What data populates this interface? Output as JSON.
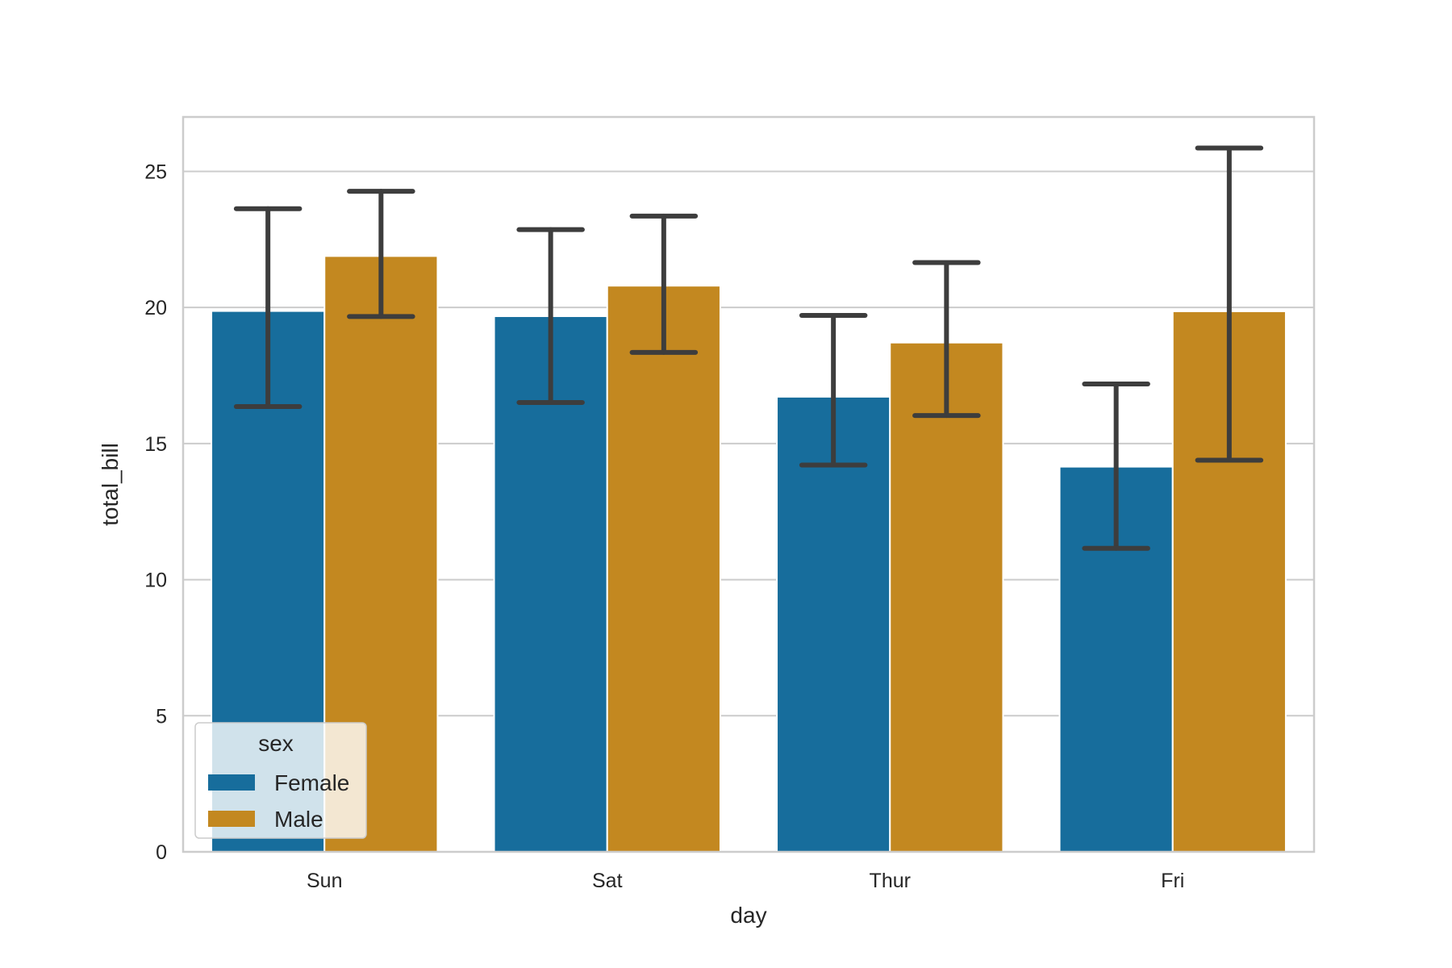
{
  "chart_data": {
    "type": "bar",
    "title": "",
    "xlabel": "day",
    "ylabel": "total_bill",
    "categories": [
      "Sun",
      "Sat",
      "Thur",
      "Fri"
    ],
    "ylim": [
      0,
      27
    ],
    "yticks": [
      "0",
      "5",
      "10",
      "15",
      "20",
      "25"
    ],
    "grid": true,
    "series": [
      {
        "name": "Female",
        "color": "#176d9c",
        "values": [
          19.87,
          19.68,
          16.72,
          14.15
        ],
        "ci_low": [
          16.36,
          16.51,
          14.21,
          11.15
        ],
        "ci_high": [
          23.63,
          22.86,
          19.71,
          17.19
        ]
      },
      {
        "name": "Male",
        "color": "#c38820",
        "values": [
          21.89,
          20.8,
          18.71,
          19.86
        ],
        "ci_low": [
          19.67,
          18.35,
          16.03,
          14.39
        ],
        "ci_high": [
          24.27,
          23.36,
          21.65,
          25.86
        ]
      }
    ],
    "legend": {
      "title": "sex",
      "position": "lower-left"
    }
  }
}
